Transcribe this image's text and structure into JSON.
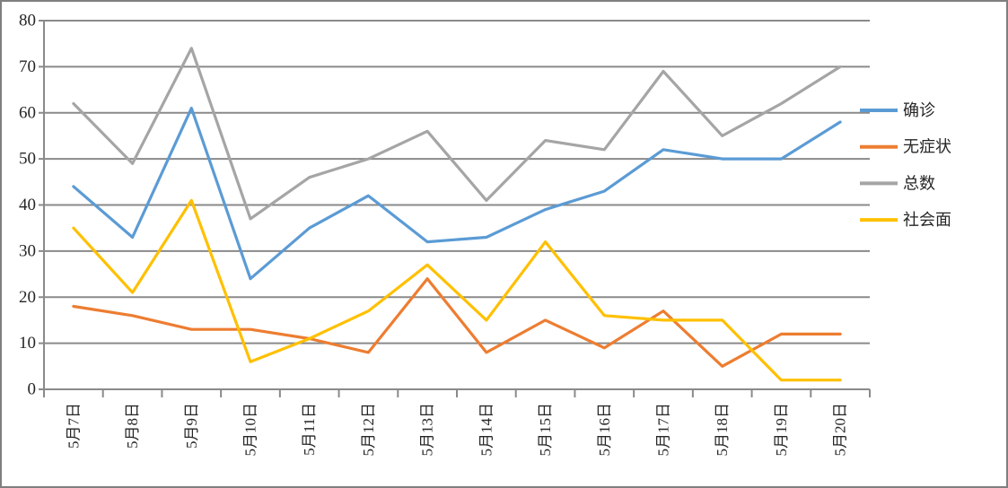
{
  "window": {
    "background": "#ffffff",
    "border_color": "#7f7f7f"
  },
  "chart_data": {
    "type": "line",
    "title": "",
    "xlabel": "",
    "ylabel": "",
    "categories": [
      "5月7日",
      "5月8日",
      "5月9日",
      "5月10日",
      "5月11日",
      "5月12日",
      "5月13日",
      "5月14日",
      "5月15日",
      "5月16日",
      "5月17日",
      "5月18日",
      "5月19日",
      "5月20日"
    ],
    "series": [
      {
        "name": "确诊",
        "color": "#5B9BD5",
        "values": [
          44,
          33,
          61,
          24,
          35,
          42,
          32,
          33,
          39,
          43,
          52,
          50,
          50,
          58
        ]
      },
      {
        "name": "无症状",
        "color": "#ED7D31",
        "values": [
          18,
          16,
          13,
          13,
          11,
          8,
          24,
          8,
          15,
          9,
          17,
          5,
          12,
          12
        ]
      },
      {
        "name": "总数",
        "color": "#A5A5A5",
        "values": [
          62,
          49,
          74,
          37,
          46,
          50,
          56,
          41,
          54,
          52,
          69,
          55,
          62,
          70
        ]
      },
      {
        "name": "社会面",
        "color": "#FFC000",
        "values": [
          35,
          21,
          41,
          6,
          11,
          17,
          27,
          15,
          32,
          16,
          15,
          15,
          2,
          2
        ]
      }
    ],
    "ylim": [
      0,
      80
    ],
    "yticks": [
      0,
      10,
      20,
      30,
      40,
      50,
      60,
      70,
      80
    ],
    "grid": true,
    "legend_position": "right",
    "axis_color": "#8a8a8a",
    "text_color": "#262626",
    "line_width": 3.2
  }
}
